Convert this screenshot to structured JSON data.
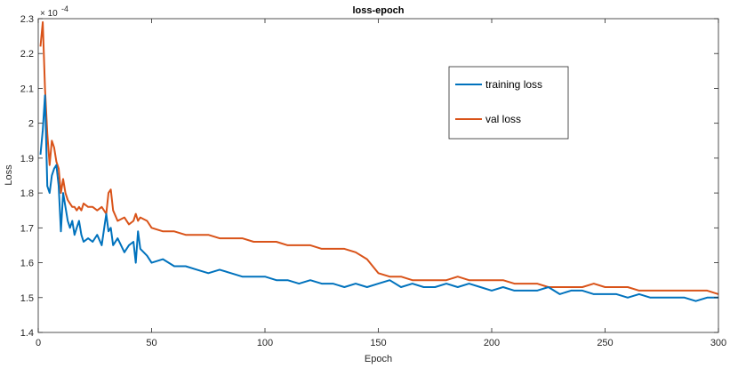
{
  "chart_data": {
    "type": "line",
    "title": "loss-epoch",
    "xlabel": "Epoch",
    "ylabel": "Loss",
    "y_exponent_base": "× 10",
    "y_exponent_power": "-4",
    "xlim": [
      0,
      300
    ],
    "ylim": [
      1.4,
      2.3
    ],
    "x_ticks": [
      0,
      50,
      100,
      150,
      200,
      250,
      300
    ],
    "y_ticks": [
      1.4,
      1.5,
      1.6,
      1.7,
      1.8,
      1.9,
      2.0,
      2.1,
      2.2,
      2.3
    ],
    "y_tick_labels": [
      "1.4",
      "1.5",
      "1.6",
      "1.7",
      "1.8",
      "1.9",
      "2",
      "2.1",
      "2.2",
      "2.3"
    ],
    "grid": false,
    "legend_position": "top-right",
    "colors": {
      "training": "#0072BD",
      "val": "#D95319"
    },
    "series": [
      {
        "name": "training loss",
        "x": [
          1,
          2,
          3,
          4,
          5,
          6,
          7,
          8,
          9,
          10,
          11,
          12,
          13,
          14,
          15,
          16,
          17,
          18,
          19,
          20,
          22,
          24,
          26,
          28,
          30,
          31,
          32,
          33,
          35,
          38,
          40,
          42,
          43,
          44,
          45,
          48,
          50,
          55,
          60,
          65,
          70,
          75,
          80,
          85,
          90,
          95,
          100,
          105,
          110,
          115,
          120,
          125,
          130,
          135,
          140,
          145,
          150,
          155,
          160,
          165,
          170,
          175,
          180,
          185,
          190,
          195,
          200,
          205,
          210,
          215,
          220,
          225,
          230,
          235,
          240,
          245,
          250,
          255,
          260,
          265,
          270,
          275,
          280,
          285,
          290,
          295,
          300
        ],
        "values": [
          1.91,
          1.98,
          2.08,
          1.82,
          1.8,
          1.85,
          1.87,
          1.88,
          1.82,
          1.69,
          1.8,
          1.76,
          1.72,
          1.7,
          1.72,
          1.68,
          1.7,
          1.72,
          1.68,
          1.66,
          1.67,
          1.66,
          1.68,
          1.65,
          1.74,
          1.69,
          1.7,
          1.65,
          1.67,
          1.63,
          1.65,
          1.66,
          1.6,
          1.69,
          1.64,
          1.62,
          1.6,
          1.61,
          1.59,
          1.59,
          1.58,
          1.57,
          1.58,
          1.57,
          1.56,
          1.56,
          1.56,
          1.55,
          1.55,
          1.54,
          1.55,
          1.54,
          1.54,
          1.53,
          1.54,
          1.53,
          1.54,
          1.55,
          1.53,
          1.54,
          1.53,
          1.53,
          1.54,
          1.53,
          1.54,
          1.53,
          1.52,
          1.53,
          1.52,
          1.52,
          1.52,
          1.53,
          1.51,
          1.52,
          1.52,
          1.51,
          1.51,
          1.51,
          1.5,
          1.51,
          1.5,
          1.5,
          1.5,
          1.5,
          1.49,
          1.5,
          1.5
        ]
      },
      {
        "name": "val loss",
        "x": [
          1,
          2,
          3,
          4,
          5,
          6,
          7,
          8,
          9,
          10,
          11,
          12,
          13,
          14,
          15,
          16,
          17,
          18,
          19,
          20,
          22,
          24,
          26,
          28,
          30,
          31,
          32,
          33,
          35,
          38,
          40,
          42,
          43,
          44,
          45,
          48,
          50,
          55,
          60,
          65,
          70,
          75,
          80,
          85,
          90,
          95,
          100,
          105,
          110,
          115,
          120,
          125,
          130,
          135,
          140,
          145,
          150,
          155,
          160,
          165,
          170,
          175,
          180,
          185,
          190,
          195,
          200,
          205,
          210,
          215,
          220,
          225,
          230,
          235,
          240,
          245,
          250,
          255,
          260,
          265,
          270,
          275,
          280,
          285,
          290,
          295,
          300
        ],
        "values": [
          2.22,
          2.29,
          2.1,
          1.97,
          1.88,
          1.95,
          1.93,
          1.89,
          1.87,
          1.8,
          1.84,
          1.8,
          1.78,
          1.77,
          1.76,
          1.76,
          1.75,
          1.76,
          1.75,
          1.77,
          1.76,
          1.76,
          1.75,
          1.76,
          1.74,
          1.8,
          1.81,
          1.75,
          1.72,
          1.73,
          1.71,
          1.72,
          1.74,
          1.72,
          1.73,
          1.72,
          1.7,
          1.69,
          1.69,
          1.68,
          1.68,
          1.68,
          1.67,
          1.67,
          1.67,
          1.66,
          1.66,
          1.66,
          1.65,
          1.65,
          1.65,
          1.64,
          1.64,
          1.64,
          1.63,
          1.61,
          1.57,
          1.56,
          1.56,
          1.55,
          1.55,
          1.55,
          1.55,
          1.56,
          1.55,
          1.55,
          1.55,
          1.55,
          1.54,
          1.54,
          1.54,
          1.53,
          1.53,
          1.53,
          1.53,
          1.54,
          1.53,
          1.53,
          1.53,
          1.52,
          1.52,
          1.52,
          1.52,
          1.52,
          1.52,
          1.52,
          1.51
        ]
      }
    ]
  }
}
